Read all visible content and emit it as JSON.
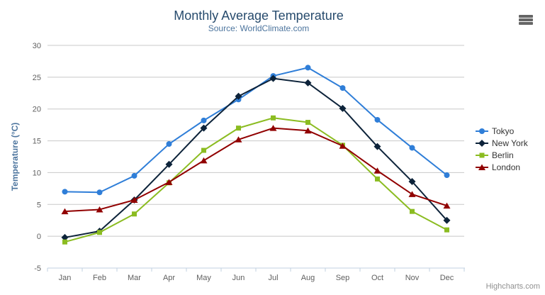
{
  "chart_data": {
    "type": "line",
    "title": "Monthly Average Temperature",
    "subtitle": "Source: WorldClimate.com",
    "categories": [
      "Jan",
      "Feb",
      "Mar",
      "Apr",
      "May",
      "Jun",
      "Jul",
      "Aug",
      "Sep",
      "Oct",
      "Nov",
      "Dec"
    ],
    "series": [
      {
        "name": "Tokyo",
        "color": "#2f7ed8",
        "marker": "circle",
        "values": [
          7.0,
          6.9,
          9.5,
          14.5,
          18.2,
          21.5,
          25.2,
          26.5,
          23.3,
          18.3,
          13.9,
          9.6
        ]
      },
      {
        "name": "New York",
        "color": "#0d233a",
        "marker": "diamond",
        "values": [
          -0.2,
          0.8,
          5.7,
          11.3,
          17.0,
          22.0,
          24.8,
          24.1,
          20.1,
          14.1,
          8.6,
          2.5
        ]
      },
      {
        "name": "Berlin",
        "color": "#8bbc21",
        "marker": "square",
        "values": [
          -0.9,
          0.6,
          3.5,
          8.4,
          13.5,
          17.0,
          18.6,
          17.9,
          14.3,
          9.0,
          3.9,
          1.0
        ]
      },
      {
        "name": "London",
        "color": "#910000",
        "marker": "triangle",
        "values": [
          3.9,
          4.2,
          5.7,
          8.5,
          11.9,
          15.2,
          17.0,
          16.6,
          14.2,
          10.3,
          6.6,
          4.8
        ]
      }
    ],
    "xlabel": "",
    "ylabel": "Temperature (°C)",
    "ylim": [
      -5,
      30
    ],
    "ytick_step": 5,
    "grid": true,
    "legend_position": "right",
    "colors": {
      "title": "#274b6d",
      "subtitle": "#4d759e",
      "axis_label": "#606060",
      "axis_title": "#4d759e",
      "gridline": "#c8c8c8",
      "axis_line": "#c0d0e0",
      "legend_text": "#333333",
      "credits_text": "#909090",
      "menu_icon": "#666666"
    }
  },
  "toolbar": {
    "export_menu_icon": "hamburger-icon"
  },
  "credits": {
    "label": "Highcharts.com"
  }
}
